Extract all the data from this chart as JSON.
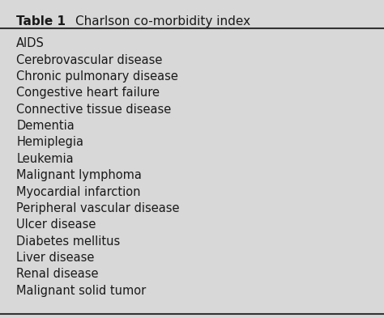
{
  "title_bold": "Table 1",
  "title_regular": "Charlson co-morbidity index",
  "items": [
    "AIDS",
    "Cerebrovascular disease",
    "Chronic pulmonary disease",
    "Congestive heart failure",
    "Connective tissue disease",
    "Dementia",
    "Hemiplegia",
    "Leukemia",
    "Malignant lymphoma",
    "Myocardial infarction",
    "Peripheral vascular disease",
    "Ulcer disease",
    "Diabetes mellitus",
    "Liver disease",
    "Renal disease",
    "Malignant solid tumor"
  ],
  "background_color": "#d8d8d8",
  "text_color": "#1a1a1a",
  "title_fontsize": 11,
  "item_fontsize": 10.5,
  "line_color": "#333333"
}
